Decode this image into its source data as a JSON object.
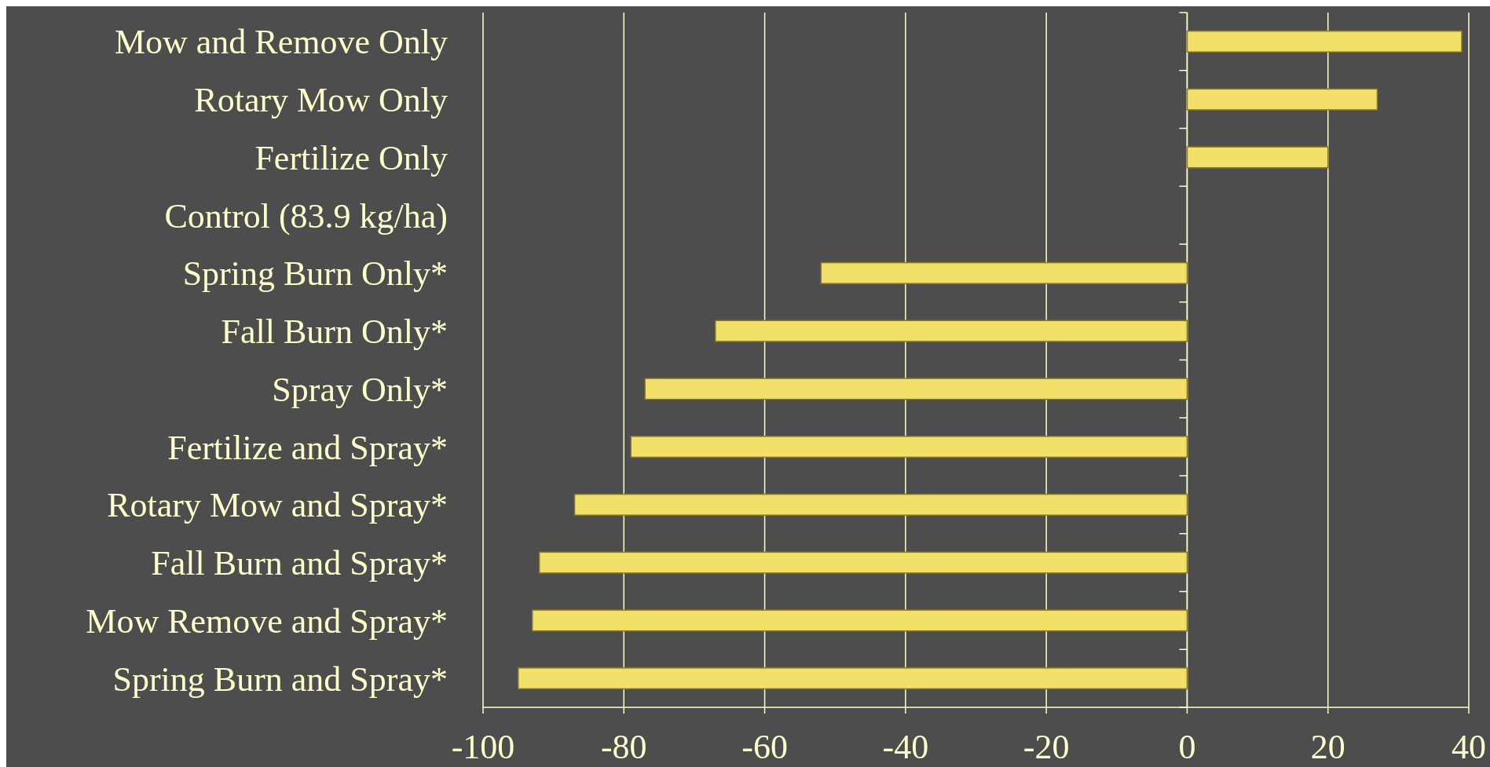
{
  "chart_data": {
    "type": "bar",
    "orientation": "horizontal",
    "categories": [
      "Mow and Remove Only",
      "Rotary Mow Only",
      "Fertilize Only",
      "Control (83.9 kg/ha)",
      "Spring Burn Only*",
      "Fall Burn Only*",
      "Spray Only*",
      "Fertilize and Spray*",
      "Rotary Mow and Spray*",
      "Fall Burn and Spray*",
      "Mow Remove and Spray*",
      "Spring Burn and Spray*"
    ],
    "values": [
      39,
      27,
      20,
      null,
      -52,
      -67,
      -77,
      -79,
      -87,
      -92,
      -93,
      -95
    ],
    "color": "#f2e06a",
    "xlim": [
      -100,
      40
    ],
    "xticks": [
      -100,
      -80,
      -60,
      -40,
      -20,
      0,
      20,
      40
    ],
    "grid": "x"
  }
}
